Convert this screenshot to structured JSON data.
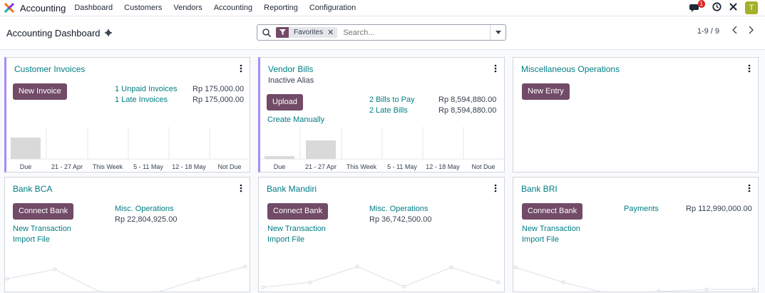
{
  "navbar": {
    "app_name": "Accounting",
    "menu": [
      "Dashboard",
      "Customers",
      "Vendors",
      "Accounting",
      "Reporting",
      "Configuration"
    ],
    "chat_badge": "1",
    "avatar_letter": "T",
    "icons": [
      "app-logo",
      "chat-icon",
      "clock-icon",
      "tools-icon"
    ]
  },
  "control_panel": {
    "title": "Accounting Dashboard",
    "search": {
      "facet": "Favorites",
      "placeholder": "Search..."
    },
    "pager": "1-9 / 9"
  },
  "cards": {
    "customer_invoices": {
      "title": "Customer Invoices",
      "button": "New Invoice",
      "rows": [
        {
          "label": "1 Unpaid Invoices",
          "amount": "Rp 175,000.00"
        },
        {
          "label": "1 Late Invoices",
          "amount": "Rp 175,000.00"
        }
      ],
      "chart_labels": [
        "Due",
        "21 - 27 Apr",
        "This Week",
        "5 - 11 May",
        "12 - 18 May",
        "Not Due"
      ]
    },
    "vendor_bills": {
      "title": "Vendor Bills",
      "subtitle": "Inactive Alias",
      "button": "Upload",
      "create_link": "Create Manually",
      "rows": [
        {
          "label": "2 Bills to Pay",
          "amount": "Rp 8,594,880.00"
        },
        {
          "label": "2 Late Bills",
          "amount": "Rp 8,594,880.00"
        }
      ],
      "chart_labels": [
        "Due",
        "21 - 27 Apr",
        "This Week",
        "5 - 11 May",
        "12 - 18 May",
        "Not Due"
      ]
    },
    "misc_operations": {
      "title": "Miscellaneous Operations",
      "button": "New Entry"
    },
    "bank_bca": {
      "title": "Bank BCA",
      "button": "Connect Bank",
      "links": [
        "New Transaction",
        "Import File"
      ],
      "op_label": "Misc. Operations",
      "op_amount": "Rp 22,804,925.00"
    },
    "bank_mandiri": {
      "title": "Bank Mandiri",
      "button": "Connect Bank",
      "links": [
        "New Transaction",
        "Import File"
      ],
      "op_label": "Misc. Operations",
      "op_amount": "Rp 36,742,500.00"
    },
    "bank_bri": {
      "title": "Bank BRI",
      "button": "Connect Bank",
      "links": [
        "New Transaction",
        "Import File"
      ],
      "op_label": "Payments",
      "op_amount": "Rp 112,990,000.00"
    }
  },
  "colors": {
    "primary": "#714b67",
    "link": "#017e84",
    "accent_border": "#a78bfa",
    "bar": "#d9d9d9"
  }
}
